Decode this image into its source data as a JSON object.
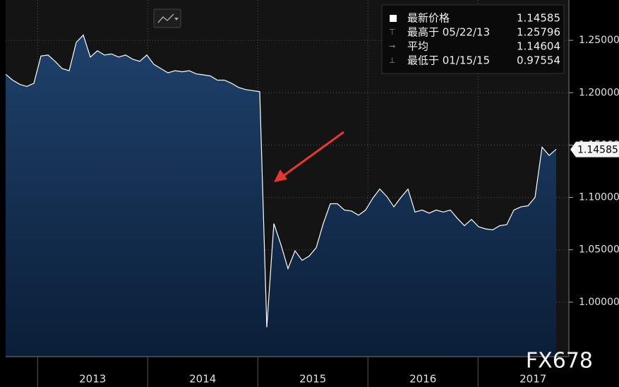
{
  "chart_data": {
    "type": "area",
    "ylim": [
      0.948,
      1.2885
    ],
    "yticks": [
      {
        "value": 1.0,
        "label": "1.00000"
      },
      {
        "value": 1.05,
        "label": "1.05000"
      },
      {
        "value": 1.1,
        "label": "1.10000"
      },
      {
        "value": 1.15,
        "label": "1.15000"
      },
      {
        "value": 1.2,
        "label": "1.20000"
      },
      {
        "value": 1.25,
        "label": "1.25000"
      }
    ],
    "xlim": [
      2012.71,
      2017.71
    ],
    "xticks": [
      2013,
      2014,
      2015,
      2016,
      2017
    ],
    "grid": true,
    "color": "#ffffff",
    "fill": "#1b3a60",
    "values": [
      1.2176,
      1.212,
      1.208,
      1.206,
      1.209,
      1.235,
      1.236,
      1.23,
      1.223,
      1.221,
      1.248,
      1.255,
      1.234,
      1.24,
      1.236,
      1.237,
      1.234,
      1.236,
      1.232,
      1.23,
      1.236,
      1.227,
      1.223,
      1.219,
      1.221,
      1.22,
      1.221,
      1.218,
      1.217,
      1.216,
      1.212,
      1.212,
      1.209,
      1.205,
      1.203,
      1.202,
      1.201,
      0.976,
      1.075,
      1.055,
      1.032,
      1.049,
      1.04,
      1.044,
      1.052,
      1.075,
      1.094,
      1.094,
      1.088,
      1.087,
      1.083,
      1.088,
      1.099,
      1.108,
      1.101,
      1.091,
      1.1,
      1.108,
      1.086,
      1.088,
      1.085,
      1.088,
      1.086,
      1.088,
      1.08,
      1.073,
      1.079,
      1.072,
      1.07,
      1.069,
      1.073,
      1.074,
      1.088,
      1.091,
      1.092,
      1.1,
      1.148,
      1.14,
      1.146
    ],
    "stats": [
      {
        "label": "最新价格",
        "value": 1.14585
      },
      {
        "label": "最高于 05/22/13",
        "value": 1.25796
      },
      {
        "label": "平均",
        "value": 1.14604
      },
      {
        "label": "最低于 01/15/15",
        "value": 0.97554
      }
    ],
    "watermark": "FX678"
  }
}
